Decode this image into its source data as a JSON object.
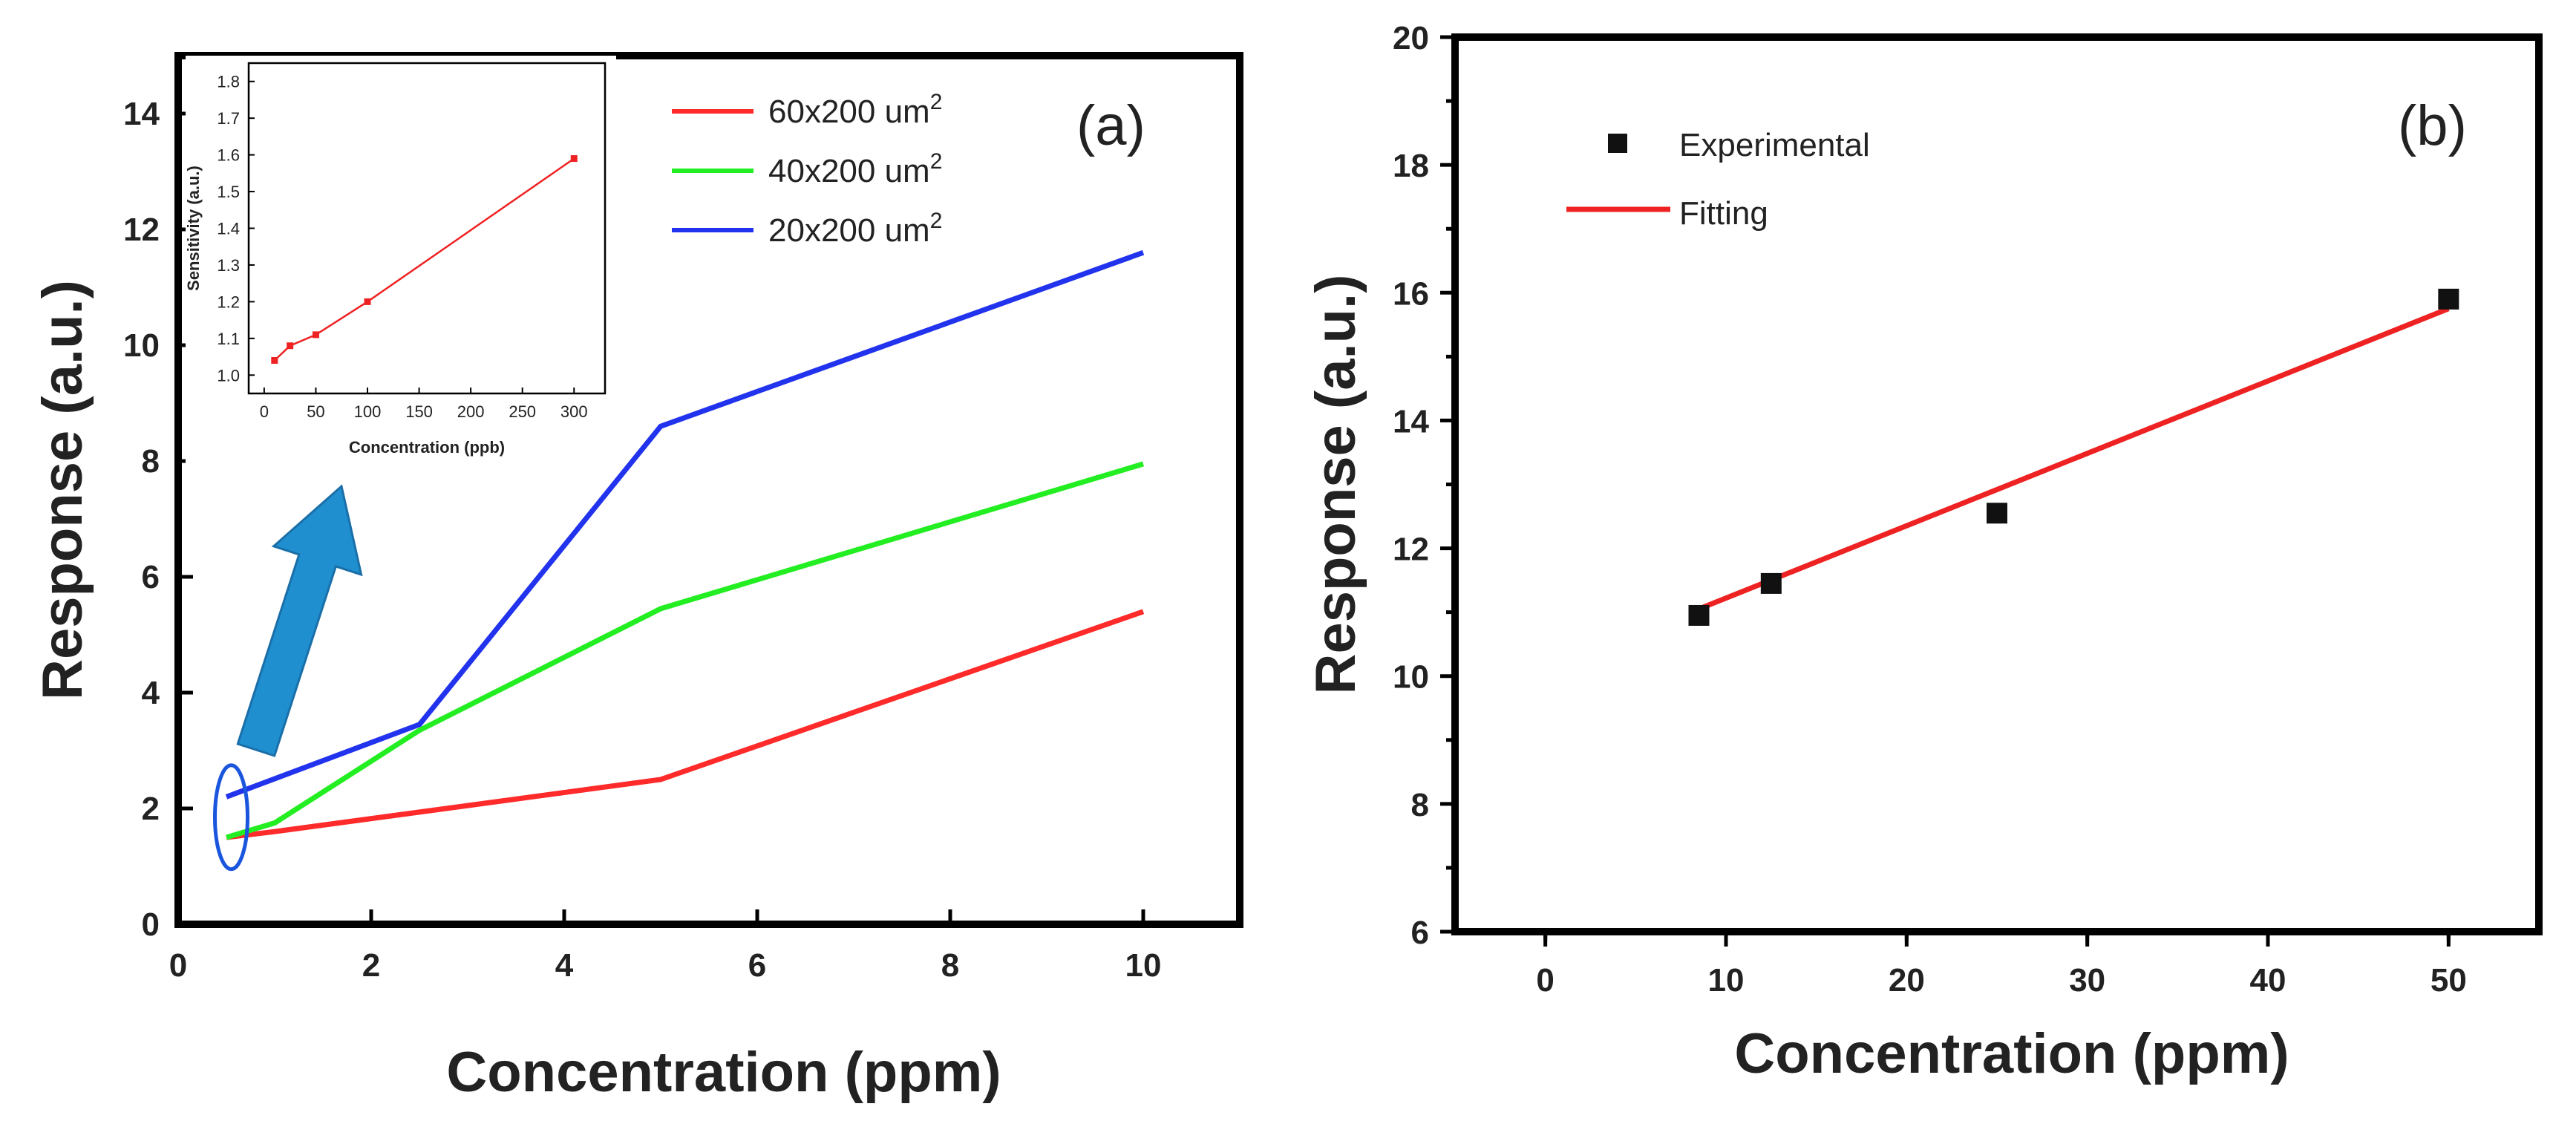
{
  "chart_data": [
    {
      "panel": "(a)",
      "type": "line",
      "xlabel": "Concentration (ppm)",
      "ylabel": "Response (a.u.)",
      "xlim": [
        0,
        11
      ],
      "ylim": [
        0,
        15
      ],
      "xticks": [
        "0",
        "2",
        "4",
        "6",
        "8",
        "10"
      ],
      "yticks": [
        "0",
        "2",
        "4",
        "6",
        "8",
        "10",
        "12",
        "14"
      ],
      "series": [
        {
          "name": "60x200 um",
          "superscript": "2",
          "color": "#ff2a2a",
          "x": [
            0.5,
            1,
            5,
            10
          ],
          "y": [
            1.5,
            1.6,
            2.5,
            5.4
          ]
        },
        {
          "name": "40x200 um",
          "superscript": "2",
          "color": "#22ee22",
          "x": [
            0.5,
            1,
            2.5,
            5,
            10
          ],
          "y": [
            1.5,
            1.75,
            3.35,
            5.45,
            7.95
          ]
        },
        {
          "name": "20x200 um",
          "superscript": "2",
          "color": "#2233ee",
          "x": [
            0.5,
            2.5,
            5,
            10
          ],
          "y": [
            2.2,
            3.45,
            8.6,
            11.6
          ]
        }
      ],
      "annotation": {
        "ellipse_color": "#1a55dd",
        "arrow_color": "#1f8fd0"
      },
      "inset": {
        "type": "line",
        "xlabel": "Concentration (ppb)",
        "ylabel": "Sensitivity (a.u.)",
        "xlim": [
          -15,
          330
        ],
        "ylim": [
          0.95,
          1.85
        ],
        "xticks": [
          "0",
          "50",
          "100",
          "150",
          "200",
          "250",
          "300"
        ],
        "yticks": [
          "1.0",
          "1.1",
          "1.2",
          "1.3",
          "1.4",
          "1.5",
          "1.6",
          "1.7",
          "1.8"
        ],
        "color": "#ee2222",
        "x": [
          10,
          25,
          50,
          100,
          300
        ],
        "y": [
          1.04,
          1.08,
          1.11,
          1.2,
          1.59
        ]
      }
    },
    {
      "panel": "(b)",
      "type": "scatter",
      "xlabel": "Concentration (ppm)",
      "ylabel": "Response (a.u.)",
      "xlim": [
        -5,
        55
      ],
      "ylim": [
        6,
        20
      ],
      "xticks": [
        "0",
        "10",
        "20",
        "30",
        "40",
        "50"
      ],
      "yticks": [
        "6",
        "8",
        "10",
        "12",
        "14",
        "16",
        "18",
        "20"
      ],
      "series": [
        {
          "name": "Experimental",
          "kind": "points",
          "color": "#111111",
          "x": [
            8.5,
            12.5,
            25,
            50
          ],
          "y": [
            10.95,
            11.45,
            12.55,
            15.9
          ]
        },
        {
          "name": "Fitting",
          "kind": "line",
          "color": "#ee2222",
          "x": [
            8.5,
            50
          ],
          "y": [
            11.05,
            15.75
          ]
        }
      ]
    }
  ]
}
